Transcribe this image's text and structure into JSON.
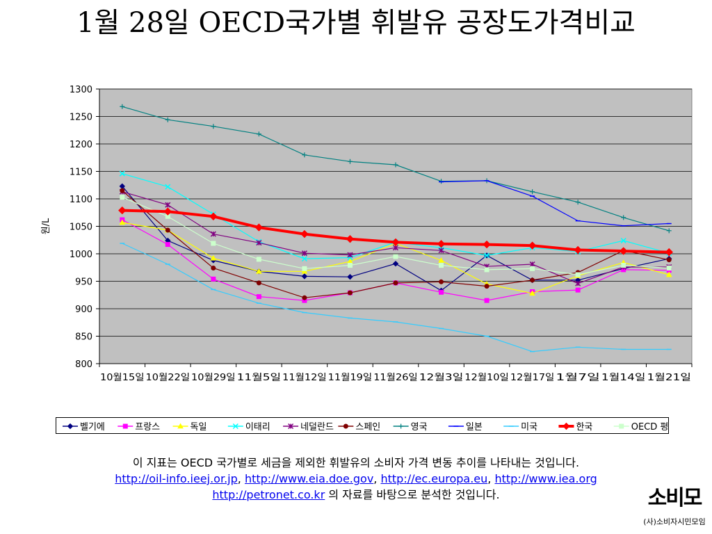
{
  "slide": {
    "title": "1월 28일 OECD국가별 휘발유 공장도가격비교",
    "description": "이 지표는 OECD 국가별로 세금을 제외한 휘발유의 소비자 가격 변동 추이를 나타내는 것입니다.",
    "links": [
      "http://oil-info.ieej.or.jp",
      "http://www.eia.doe.gov",
      "http://ec.europa.eu",
      "http://www.iea.org",
      "http://petronet.co.kr"
    ],
    "source_suffix": "의 자료를 바탕으로 분석한 것입니다.",
    "separator": ",",
    "logo_text": "소비모",
    "logo_org": "(사)소비자시민모임"
  },
  "chart_data": {
    "type": "line",
    "title": "1월 28일 OECD국가별 휘발유 공장도가격비교",
    "ylabel": "원/L",
    "xlabel": "",
    "ylim": [
      800,
      1300
    ],
    "yticks": [
      800,
      850,
      900,
      950,
      1000,
      1050,
      1100,
      1150,
      1200,
      1250,
      1300
    ],
    "grid": true,
    "legend": "bottom",
    "categories": [
      "10월15일",
      "10월22일",
      "10월29일",
      "11월5일",
      "11월12일",
      "11월19일",
      "11월26일",
      "12월3일",
      "12월10일",
      "12월17일",
      "1월7일",
      "1월14일",
      "1월21일"
    ],
    "series": [
      {
        "name": "벨기에",
        "color": "#000080",
        "marker": "diamond",
        "values": [
          1123,
          1024,
          988,
          968,
          959,
          958,
          982,
          933,
          997,
          952,
          952,
          973,
          991
        ]
      },
      {
        "name": "프랑스",
        "color": "#ff00ff",
        "marker": "square",
        "values": [
          1062,
          1017,
          954,
          922,
          915,
          929,
          947,
          930,
          915,
          931,
          934,
          971,
          970
        ]
      },
      {
        "name": "독일",
        "color": "#ffff00",
        "marker": "triangle",
        "values": [
          1057,
          1043,
          992,
          968,
          968,
          986,
          1019,
          988,
          945,
          928,
          960,
          984,
          962
        ]
      },
      {
        "name": "이태리",
        "color": "#00ffff",
        "marker": "x",
        "values": [
          1146,
          1122,
          1072,
          1022,
          991,
          993,
          1021,
          1011,
          997,
          1011,
          1004,
          1024,
          1001
        ]
      },
      {
        "name": "네덜란드",
        "color": "#800080",
        "marker": "star",
        "values": [
          1113,
          1089,
          1036,
          1020,
          1001,
          998,
          1011,
          1006,
          977,
          981,
          946,
          976,
          976
        ]
      },
      {
        "name": "스페인",
        "color": "#800000",
        "marker": "circle",
        "values": [
          1115,
          1043,
          974,
          947,
          920,
          929,
          947,
          949,
          941,
          952,
          966,
          1006,
          989
        ]
      },
      {
        "name": "영국",
        "color": "#008080",
        "marker": "plus",
        "values": [
          1268,
          1244,
          1232,
          1218,
          1180,
          1168,
          1162,
          1132,
          1133,
          1113,
          1094,
          1066,
          1042
        ]
      },
      {
        "name": "일본",
        "color": "#0000ff",
        "marker": "dash",
        "values": [
          null,
          null,
          null,
          null,
          null,
          null,
          null,
          1131,
          1133,
          1105,
          1060,
          1051,
          1055
        ]
      },
      {
        "name": "미국",
        "color": "#33ccff",
        "marker": "dash",
        "values": [
          1019,
          981,
          935,
          910,
          893,
          883,
          876,
          864,
          850,
          822,
          830,
          826,
          826
        ]
      },
      {
        "name": "한국",
        "color": "#ff0000",
        "marker": "diamond",
        "thick": true,
        "values": [
          1079,
          1077,
          1068,
          1048,
          1036,
          1027,
          1021,
          1018,
          1017,
          1015,
          1007,
          1005,
          1003
        ]
      },
      {
        "name": "OECD 평균",
        "color": "#ccffcc",
        "marker": "square",
        "values": [
          1103,
          1068,
          1019,
          990,
          973,
          979,
          995,
          979,
          971,
          973,
          962,
          979,
          974
        ]
      }
    ]
  }
}
